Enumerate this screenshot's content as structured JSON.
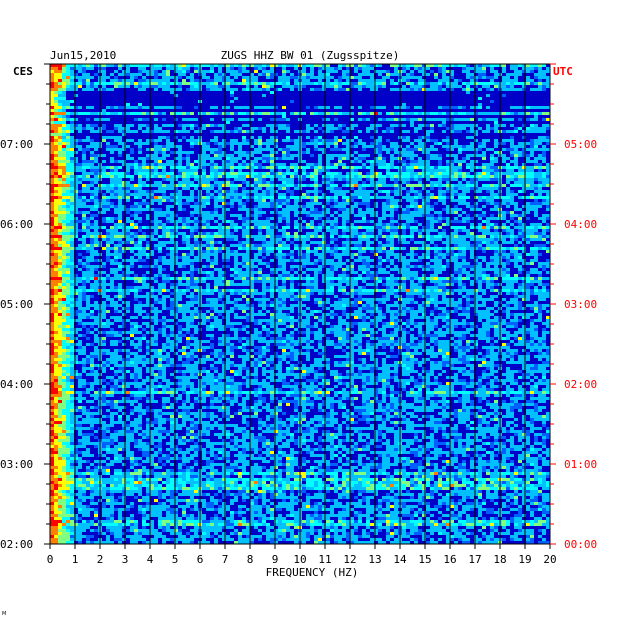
{
  "chart_data": {
    "type": "heatmap",
    "title": "ZUGS HHZ BW 01 (Zugsspitze)",
    "date": "Jun15,2010",
    "left_axis_label": "CES",
    "right_axis_label": "UTC",
    "xlabel": "FREQUENCY (HZ)",
    "xlim": [
      0,
      20
    ],
    "x_ticks": [
      "0",
      "1",
      "2",
      "3",
      "4",
      "5",
      "6",
      "7",
      "8",
      "9",
      "10",
      "11",
      "12",
      "13",
      "14",
      "15",
      "16",
      "17",
      "18",
      "19",
      "20"
    ],
    "left_time_ticks": [
      "02:00",
      "03:00",
      "04:00",
      "05:00",
      "06:00",
      "07:00"
    ],
    "right_time_ticks": [
      "00:00",
      "01:00",
      "02:00",
      "03:00",
      "04:00",
      "05:00"
    ],
    "grid": true,
    "colormap": [
      "#000080",
      "#0000ff",
      "#0060ff",
      "#00c0ff",
      "#00ffff",
      "#80ff80",
      "#ffff00",
      "#ff8000",
      "#ff0000"
    ],
    "left_label_color": "#000000",
    "right_label_color": "#ff0000",
    "background_color": "#0000c8"
  },
  "footer_mark": "M"
}
